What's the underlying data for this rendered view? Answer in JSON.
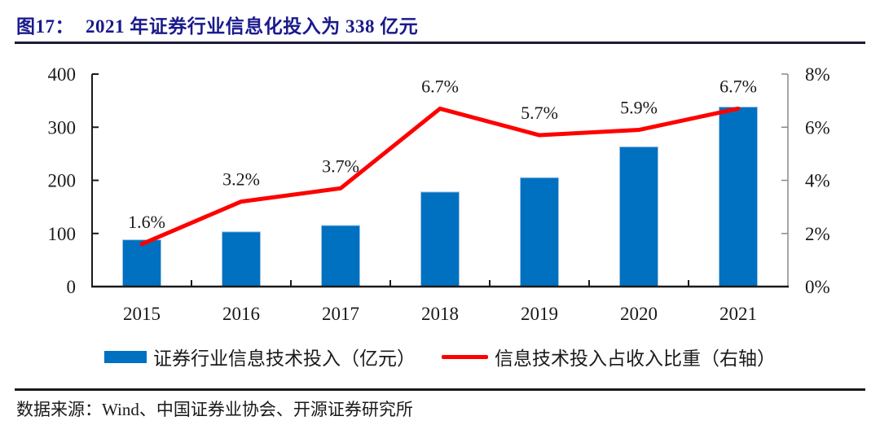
{
  "header": {
    "figure_label": "图17：",
    "title": "2021 年证券行业信息化投入为 338 亿元"
  },
  "chart_data": {
    "type": "bar",
    "subtype": "bar+line combo, dual axis",
    "title": "2021 年证券行业信息化投入为 338 亿元",
    "categories": [
      "2015",
      "2016",
      "2017",
      "2018",
      "2019",
      "2020",
      "2021"
    ],
    "series": [
      {
        "name": "证券行业信息技术投入（亿元）",
        "type": "bar",
        "axis": "left",
        "color": "#0070C0",
        "values": [
          88,
          103,
          115,
          178,
          205,
          263,
          338
        ]
      },
      {
        "name": "信息技术投入占收入比重（右轴）",
        "type": "line",
        "axis": "right",
        "color": "#FF0000",
        "values": [
          1.6,
          3.2,
          3.7,
          6.7,
          5.7,
          5.9,
          6.7
        ],
        "point_labels": [
          "1.6%",
          "3.2%",
          "3.7%",
          "6.7%",
          "5.7%",
          "5.9%",
          "6.7%"
        ]
      }
    ],
    "left_axis": {
      "min": 0,
      "max": 400,
      "ticks": [
        100,
        200,
        300,
        400
      ],
      "tick_labels": [
        "100",
        "200",
        "300",
        "400"
      ],
      "zero_label": "0"
    },
    "right_axis": {
      "min": 0,
      "max": 8,
      "ticks": [
        2,
        4,
        6,
        8
      ],
      "tick_labels": [
        "2%",
        "4%",
        "6%",
        "8%"
      ],
      "zero_label": "0%"
    },
    "grid": false,
    "legend_position": "bottom"
  },
  "legend": {
    "items": [
      {
        "label": "证券行业信息技术投入（亿元）",
        "swatch": "bar",
        "color": "#0070C0"
      },
      {
        "label": "信息技术投入占收入比重（右轴）",
        "swatch": "line",
        "color": "#FF0000"
      }
    ]
  },
  "footer": {
    "source": "数据来源：Wind、中国证券业协会、开源证券研究所"
  },
  "colors": {
    "title": "#1A1A8C",
    "bar_fill": "#0070C0",
    "bar_edge": "#9CC3E5",
    "line": "#FF0000",
    "axis_left": "#1a1a1a",
    "axis_right": "#8a8a8a",
    "text": "#1a1a1a"
  }
}
